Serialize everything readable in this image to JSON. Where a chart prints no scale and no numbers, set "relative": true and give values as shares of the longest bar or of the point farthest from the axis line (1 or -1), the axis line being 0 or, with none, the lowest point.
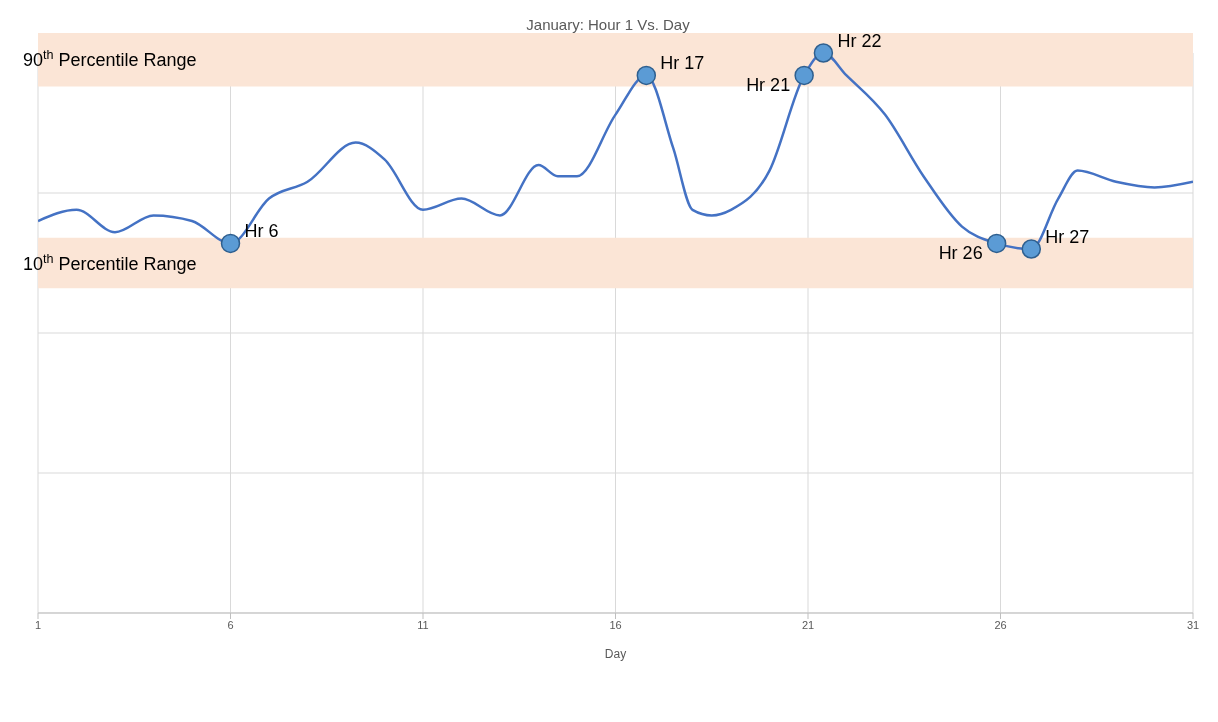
{
  "chart_data": {
    "type": "line",
    "title": "January: Hour 1 Vs. Day",
    "xlabel": "Day",
    "relative": true,
    "xlim": [
      1,
      31
    ],
    "xticks": [
      1,
      6,
      11,
      16,
      21,
      26,
      31
    ],
    "grid": true,
    "legend": false,
    "series": [
      {
        "color": "#4472c4",
        "marker": "none",
        "x": [
          1,
          2,
          3,
          4,
          5,
          6,
          7,
          8,
          9.25,
          10,
          11,
          12,
          13,
          14,
          14.5,
          15,
          16,
          16.8,
          17.5,
          18,
          18.5,
          19,
          20,
          20.9,
          21.4,
          22,
          23,
          24,
          25,
          25.9,
          26.8,
          27.5,
          28,
          29,
          30,
          31
        ],
        "values": [
          0.7,
          0.72,
          0.68,
          0.71,
          0.7,
          0.66,
          0.74,
          0.77,
          0.84,
          0.81,
          0.72,
          0.74,
          0.71,
          0.8,
          0.78,
          0.78,
          0.89,
          0.96,
          0.83,
          0.72,
          0.71,
          0.72,
          0.79,
          0.96,
          1.0,
          0.96,
          0.89,
          0.78,
          0.69,
          0.66,
          0.65,
          0.74,
          0.79,
          0.77,
          0.76,
          0.77
        ]
      },
      {
        "type": "scatter",
        "color": "#5b9bd5",
        "marker": "circle",
        "x": [
          6,
          16.8,
          20.9,
          21.4,
          25.9,
          26.8
        ],
        "values": [
          0.66,
          0.96,
          0.96,
          1.0,
          0.66,
          0.65
        ]
      }
    ],
    "bands": [
      {
        "axis": "y",
        "from": 0.94,
        "to": 1.04,
        "label": "90$^{th}$ Percentile Range",
        "color": "#fbe5d6"
      },
      {
        "axis": "y",
        "from": 0.58,
        "to": 0.67,
        "label": "10$^{th}$ Percentile Range",
        "color": "#fbe5d6"
      }
    ],
    "annotations": [
      {
        "text": "Hr 6",
        "x": 6,
        "y": 0.66
      },
      {
        "text": "Hr 17",
        "x": 16.8,
        "y": 0.96
      },
      {
        "text": "Hr 21",
        "x": 20.9,
        "y": 0.96
      },
      {
        "text": "Hr 22",
        "x": 21.4,
        "y": 1.0
      },
      {
        "text": "Hr 26",
        "x": 25.9,
        "y": 0.66
      },
      {
        "text": "Hr 27",
        "x": 26.8,
        "y": 0.65
      }
    ]
  }
}
